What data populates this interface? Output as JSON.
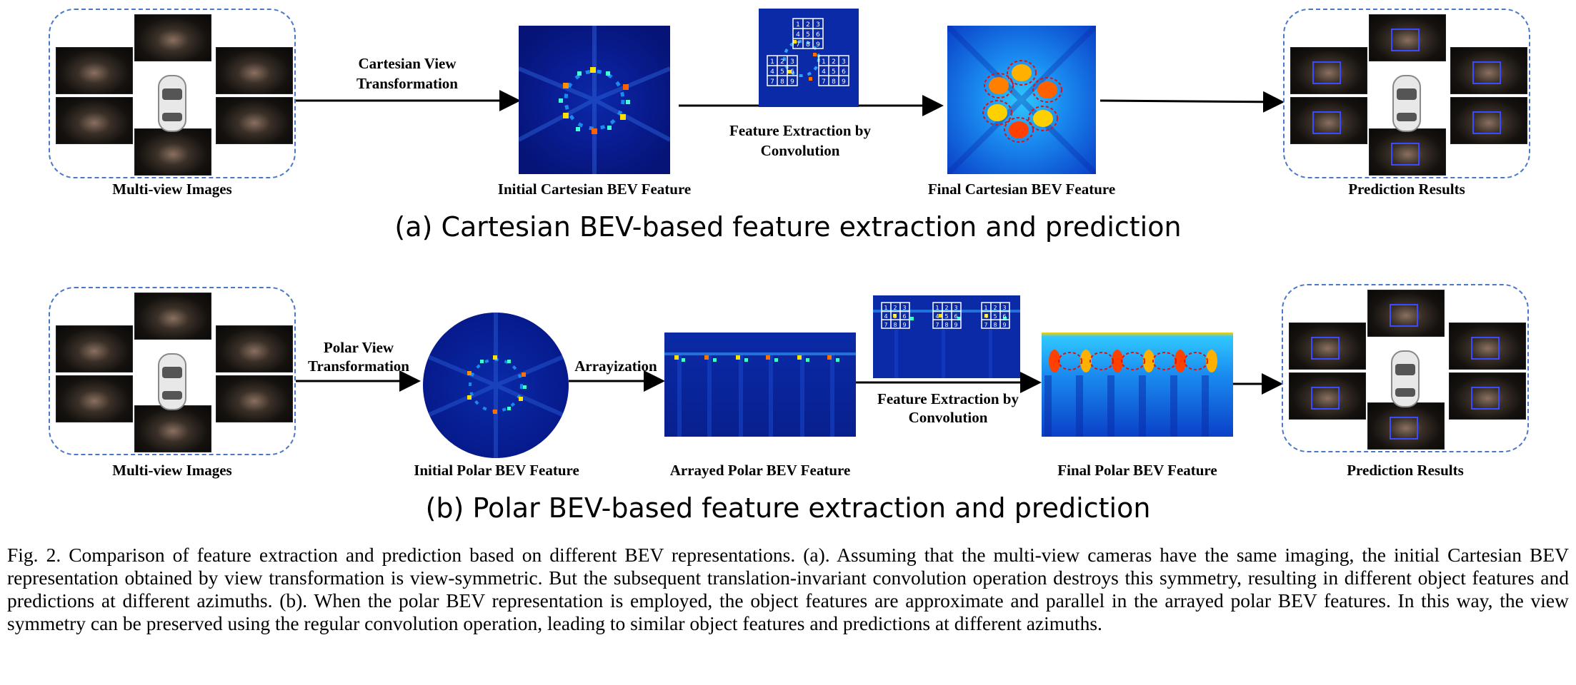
{
  "row_a": {
    "input_label": "Multi-view Images",
    "step1_label_line1": "Cartesian View",
    "step1_label_line2": "Transformation",
    "feature1_label": "Initial Cartesian BEV Feature",
    "step2_label_line1": "Feature Extraction by",
    "step2_label_line2": "Convolution",
    "feature2_label": "Final Cartesian BEV Feature",
    "output_label": "Prediction Results",
    "heading": "(a) Cartesian BEV-based feature extraction and prediction"
  },
  "row_b": {
    "input_label": "Multi-view Images",
    "step1_label_line1": "Polar View",
    "step1_label_line2": "Transformation",
    "feature1_label": "Initial Polar BEV Feature",
    "step2_label": "Arrayization",
    "feature2_label": "Arrayed Polar BEV Feature",
    "step3_label_line1": "Feature Extraction by",
    "step3_label_line2": "Convolution",
    "feature3_label": "Final Polar BEV Feature",
    "output_label": "Prediction Results",
    "heading": "(b) Polar BEV-based feature extraction and prediction"
  },
  "grid_digits": [
    "1",
    "2",
    "3",
    "4",
    "5",
    "6",
    "7",
    "8",
    "9"
  ],
  "caption": "Fig. 2.   Comparison of feature extraction and prediction based on different BEV representations. (a). Assuming that the multi-view cameras have the same imaging, the initial Cartesian BEV representation obtained by view transformation is view-symmetric. But the subsequent translation-invariant convolution operation destroys this symmetry, resulting in different object features and predictions at different azimuths. (b). When the polar BEV representation is employed, the object features are approximate and parallel in the arrayed polar BEV features. In this way, the view symmetry can be preserved using the regular convolution operation, leading to similar object features and predictions at different azimuths.",
  "colors": {
    "dashed_border": "#4a78c8",
    "feature_bg": "#0a28b4",
    "arrow": "#000000"
  }
}
